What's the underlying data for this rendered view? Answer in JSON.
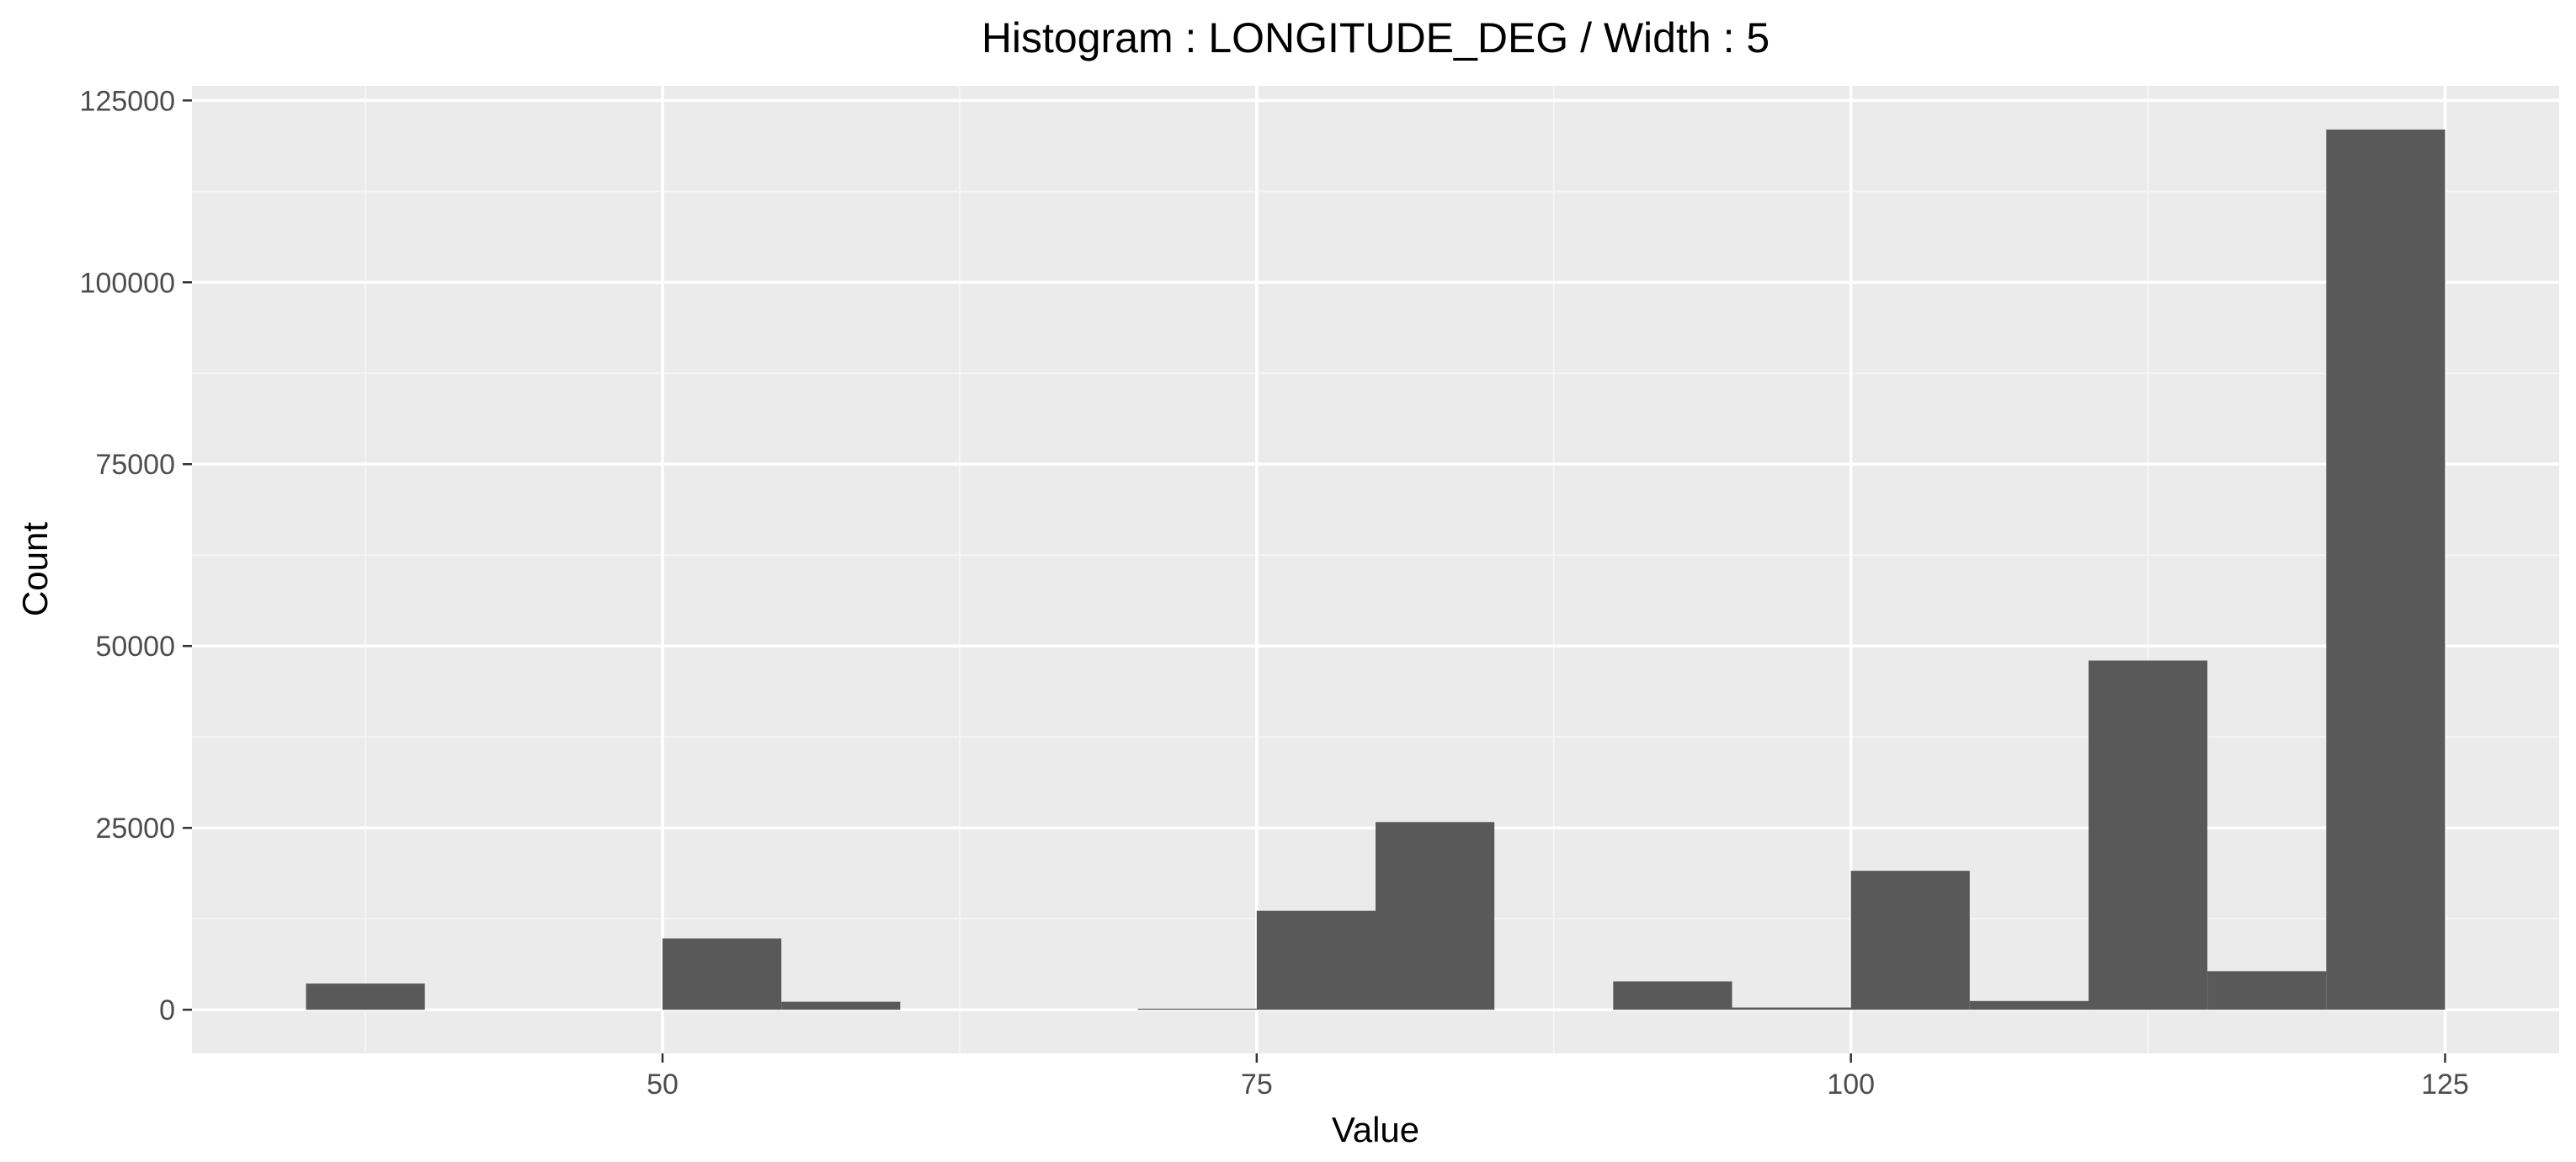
{
  "chart_data": {
    "type": "bar",
    "title": "Histogram : LONGITUDE_DEG / Width : 5",
    "xlabel": "Value",
    "ylabel": "Count",
    "bin_width": 5,
    "bins": [
      {
        "start": 35,
        "end": 40,
        "count": 3600
      },
      {
        "start": 40,
        "end": 45,
        "count": 0
      },
      {
        "start": 45,
        "end": 50,
        "count": 0
      },
      {
        "start": 50,
        "end": 55,
        "count": 9800
      },
      {
        "start": 55,
        "end": 60,
        "count": 1100
      },
      {
        "start": 60,
        "end": 65,
        "count": 0
      },
      {
        "start": 65,
        "end": 70,
        "count": 0
      },
      {
        "start": 70,
        "end": 75,
        "count": 150
      },
      {
        "start": 75,
        "end": 80,
        "count": 13600
      },
      {
        "start": 80,
        "end": 85,
        "count": 25800
      },
      {
        "start": 85,
        "end": 90,
        "count": 0
      },
      {
        "start": 90,
        "end": 95,
        "count": 3900
      },
      {
        "start": 95,
        "end": 100,
        "count": 300
      },
      {
        "start": 100,
        "end": 105,
        "count": 19100
      },
      {
        "start": 105,
        "end": 110,
        "count": 1200
      },
      {
        "start": 110,
        "end": 115,
        "count": 48000
      },
      {
        "start": 115,
        "end": 120,
        "count": 5300
      },
      {
        "start": 120,
        "end": 125,
        "count": 121000
      }
    ],
    "xlim": [
      30.2,
      129.8
    ],
    "ylim": [
      -6000,
      127000
    ],
    "x_ticks": [
      50,
      75,
      100,
      125
    ],
    "x_tick_labels": [
      "50",
      "75",
      "100",
      "125"
    ],
    "y_ticks": [
      0,
      25000,
      50000,
      75000,
      100000,
      125000
    ],
    "y_tick_labels": [
      "0",
      "25000",
      "50000",
      "75000",
      "100000",
      "125000"
    ],
    "grid": true,
    "legend": "none",
    "colors": {
      "bar": "#595959",
      "panel": "#ebebeb",
      "grid_major": "#ffffff",
      "grid_minor": "#f5f5f5",
      "tick_text": "#4d4d4d",
      "tick_mark": "#333333"
    }
  }
}
